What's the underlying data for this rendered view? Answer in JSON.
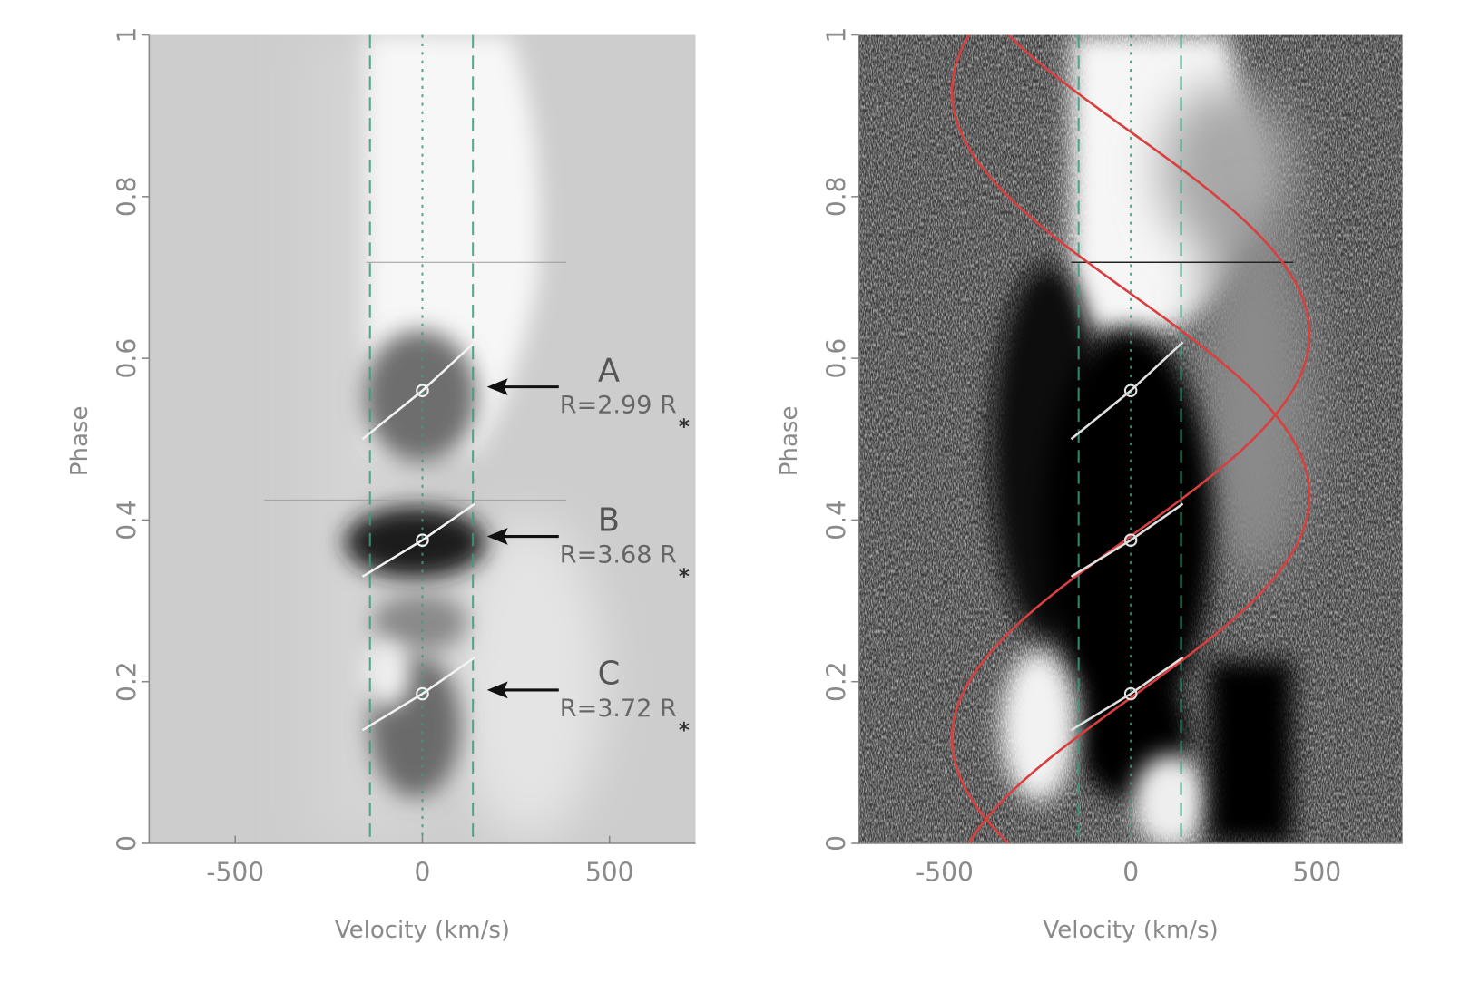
{
  "chart_data": [
    {
      "type": "dynamic-spectrum",
      "xlabel": "Velocity (km/s)",
      "ylabel": "Phase",
      "xlim": [
        -730,
        730
      ],
      "ylim": [
        0,
        1
      ],
      "xticks": [
        -500,
        0,
        500
      ],
      "yticks": [
        0,
        0.2,
        0.4,
        0.6,
        0.8,
        1
      ],
      "vlines": [
        {
          "value": -140,
          "style": "dashed"
        },
        {
          "value": 0,
          "style": "dotted"
        },
        {
          "value": 135,
          "style": "dashed"
        }
      ],
      "vline_color": "#3a9c80",
      "fits": [
        {
          "x": [
            -160,
            0,
            140
          ],
          "y": [
            0.5,
            0.56,
            0.62
          ]
        },
        {
          "x": [
            -160,
            0,
            140
          ],
          "y": [
            0.33,
            0.375,
            0.42
          ]
        },
        {
          "x": [
            -160,
            0,
            140
          ],
          "y": [
            0.14,
            0.185,
            0.23
          ]
        }
      ],
      "fit_color": "#f2f2f2",
      "annotations": [
        {
          "letter": "A",
          "text": "R=2.99 R",
          "subscript": "*"
        },
        {
          "letter": "B",
          "text": "R=3.68 R",
          "subscript": "*"
        },
        {
          "letter": "C",
          "text": "R=3.72 R",
          "subscript": "*"
        }
      ]
    },
    {
      "type": "dynamic-spectrum",
      "xlabel": "Velocity (km/s)",
      "ylabel": "Phase",
      "xlim": [
        -730,
        730
      ],
      "ylim": [
        0,
        1
      ],
      "xticks": [
        -500,
        0,
        500
      ],
      "yticks": [
        0,
        0.2,
        0.4,
        0.6,
        0.8,
        1
      ],
      "vlines": [
        {
          "value": -140,
          "style": "dashed"
        },
        {
          "value": 0,
          "style": "dotted"
        },
        {
          "value": 135,
          "style": "dashed"
        }
      ],
      "vline_color": "#3a9c80",
      "fits": [
        {
          "x": [
            -160,
            0,
            140
          ],
          "y": [
            0.5,
            0.56,
            0.62
          ]
        },
        {
          "x": [
            -160,
            0,
            140
          ],
          "y": [
            0.33,
            0.375,
            0.42
          ]
        },
        {
          "x": [
            -160,
            0,
            140
          ],
          "y": [
            0.14,
            0.185,
            0.23
          ]
        }
      ],
      "fit_color": "#e0e0e0",
      "curves": [
        {
          "color": "#d8403f",
          "amplitude": 480,
          "max_phase": 0.43
        },
        {
          "color": "#d8403f",
          "amplitude": 480,
          "max_phase": 0.63
        }
      ]
    }
  ]
}
